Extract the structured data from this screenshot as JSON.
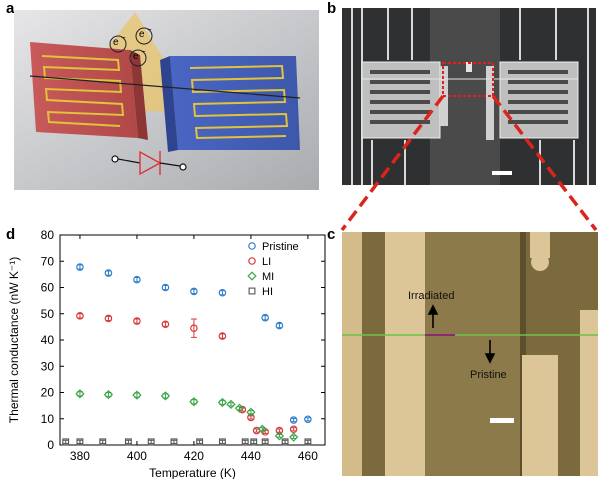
{
  "panels": {
    "a": {
      "letter": "a",
      "electron_label": "e",
      "electron_charge": "−"
    },
    "b": {
      "letter": "b"
    },
    "c": {
      "letter": "c",
      "label_up": "Irradiated",
      "label_down": "Pristine"
    },
    "d": {
      "letter": "d"
    }
  },
  "colors": {
    "pristine": "#2f7fc9",
    "li": "#d9383a",
    "mi": "#3aa548",
    "hi": "#555555",
    "dash": "#d9251c"
  },
  "chart_data": {
    "type": "scatter",
    "title": "",
    "xlabel": "Temperature (K)",
    "ylabel": "Thermal conductance (nW K⁻¹)",
    "xlim": [
      373,
      466
    ],
    "ylim": [
      0,
      80
    ],
    "xticks": [
      380,
      400,
      420,
      440,
      460
    ],
    "yticks": [
      0,
      10,
      20,
      30,
      40,
      50,
      60,
      70,
      80
    ],
    "legend_position": "top-right",
    "series": [
      {
        "name": "Pristine",
        "marker": "circle",
        "color": "#2f7fc9",
        "x": [
          380,
          390,
          400,
          410,
          420,
          430,
          445,
          450,
          455,
          460
        ],
        "y": [
          67.8,
          65.5,
          63,
          60,
          58.5,
          58,
          48.5,
          45.5,
          9.5,
          9.8
        ],
        "err": [
          0.8,
          0.8,
          0.8,
          0.8,
          0.8,
          0.8,
          0.8,
          0.8,
          0.6,
          0.6
        ]
      },
      {
        "name": "LI",
        "marker": "circle",
        "color": "#d9383a",
        "x": [
          380,
          390,
          400,
          410,
          420,
          430,
          437,
          440,
          442,
          445,
          450,
          455
        ],
        "y": [
          49.2,
          48.2,
          47.2,
          46,
          44.5,
          41.5,
          13.5,
          10.5,
          5.5,
          5,
          5.5,
          6
        ],
        "err": [
          0.8,
          0.8,
          0.8,
          0.8,
          3.5,
          0.8,
          0.6,
          0.6,
          0.6,
          0.6,
          0.6,
          0.6
        ]
      },
      {
        "name": "MI",
        "marker": "diamond",
        "color": "#3aa548",
        "x": [
          380,
          390,
          400,
          410,
          420,
          430,
          433,
          436,
          440,
          444,
          450,
          455
        ],
        "y": [
          19.5,
          19.2,
          19,
          18.7,
          16.5,
          16.2,
          15.5,
          14,
          12.5,
          6,
          3.5,
          3
        ],
        "err": [
          0.8,
          0.8,
          0.8,
          0.8,
          0.8,
          0.8,
          0.6,
          0.6,
          0.6,
          0.6,
          0.5,
          0.5
        ]
      },
      {
        "name": "HI",
        "marker": "square",
        "color": "#555555",
        "x": [
          375,
          380,
          388,
          397,
          405,
          413,
          422,
          430,
          438,
          441,
          445,
          452,
          460
        ],
        "y": [
          1.2,
          1.2,
          1.2,
          1.2,
          1.2,
          1.2,
          1.2,
          1.2,
          1.2,
          1.2,
          1.2,
          1.2,
          1.2
        ],
        "err": [
          0.6,
          0.6,
          0.6,
          0.6,
          0.6,
          0.6,
          0.6,
          0.6,
          0.6,
          0.6,
          0.6,
          0.6,
          0.6
        ]
      }
    ]
  }
}
